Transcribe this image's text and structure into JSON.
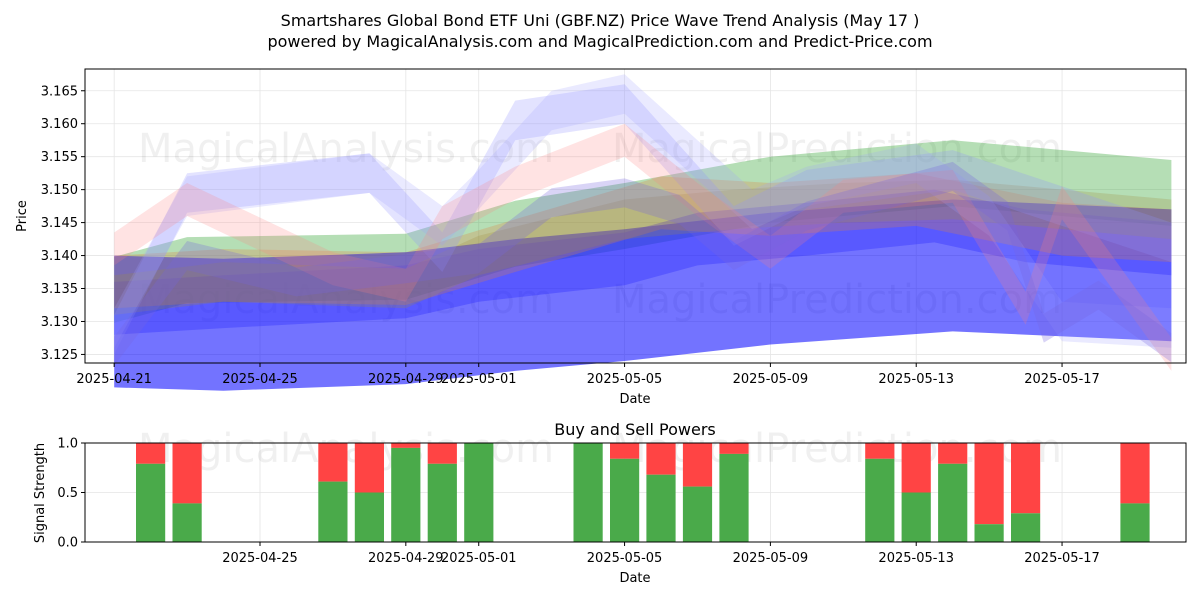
{
  "chart_data": [
    {
      "type": "area",
      "title": "Smartshares Global Bond ETF Uni (GBF.NZ) Price Wave Trend Analysis (May 17 )",
      "subtitle": "powered by MagicalAnalysis.com and MagicalPrediction.com and Predict-Price.com",
      "xlabel": "Date",
      "ylabel": "Price",
      "grid": true,
      "x_range_days": [
        -0.8,
        29.4
      ],
      "x_ticks": [
        {
          "day": 0,
          "label": "2025-04-21"
        },
        {
          "day": 4,
          "label": "2025-04-25"
        },
        {
          "day": 8,
          "label": "2025-04-29"
        },
        {
          "day": 10,
          "label": "2025-05-01"
        },
        {
          "day": 14,
          "label": "2025-05-05"
        },
        {
          "day": 18,
          "label": "2025-05-09"
        },
        {
          "day": 22,
          "label": "2025-05-13"
        },
        {
          "day": 26,
          "label": "2025-05-17"
        }
      ],
      "ylim": [
        3.1237,
        3.1683
      ],
      "y_ticks": [
        "3.125",
        "3.130",
        "3.135",
        "3.140",
        "3.145",
        "3.150",
        "3.155",
        "3.160",
        "3.165"
      ],
      "watermarks": [
        "MagicalAnalysis.com",
        "MagicalPrediction.com"
      ],
      "series": [
        {
          "name": "wave-green",
          "color": "#2ca02c",
          "opacity": 0.35,
          "x": [
            0,
            2,
            8,
            11,
            14,
            18,
            23,
            29
          ],
          "y": [
            3.1348,
            3.1378,
            3.1383,
            3.1433,
            3.146,
            3.15,
            3.1525,
            3.1495
          ],
          "band": 0.005
        },
        {
          "name": "wave-blue-main",
          "color": "#0000ff",
          "opacity": 0.55,
          "x": [
            0,
            3,
            8,
            11,
            14,
            18,
            23,
            29
          ],
          "y": [
            3.13,
            3.1295,
            3.1305,
            3.1325,
            3.134,
            3.1365,
            3.1385,
            3.137
          ],
          "band": 0.01
        },
        {
          "name": "wave-blue-2",
          "color": "#3333ff",
          "opacity": 0.4,
          "x": [
            0,
            3,
            8,
            10,
            14,
            16,
            19,
            22.5,
            25,
            29
          ],
          "y": [
            3.132,
            3.133,
            3.1345,
            3.137,
            3.1395,
            3.1425,
            3.144,
            3.146,
            3.143,
            3.141
          ],
          "band": 0.004
        },
        {
          "name": "wave-orange",
          "color": "#e08040",
          "opacity": 0.28,
          "x": [
            0,
            3,
            8,
            11,
            15,
            18,
            22,
            26,
            29
          ],
          "y": [
            3.136,
            3.137,
            3.1365,
            3.1415,
            3.148,
            3.147,
            3.1485,
            3.144,
            3.143
          ],
          "band": 0.004
        },
        {
          "name": "wave-olive",
          "color": "#a08a40",
          "opacity": 0.25,
          "x": [
            0,
            3,
            8,
            10,
            14,
            17,
            20,
            23,
            29
          ],
          "y": [
            3.134,
            3.136,
            3.135,
            3.14,
            3.1455,
            3.147,
            3.148,
            3.1485,
            3.1455
          ],
          "band": 0.003
        },
        {
          "name": "wave-lavender-high",
          "color": "#9090ff",
          "opacity": 0.25,
          "x": [
            0,
            2,
            7,
            9,
            11,
            14,
            17,
            19,
            23,
            29
          ],
          "y": [
            3.128,
            3.1495,
            3.1525,
            3.1405,
            3.1605,
            3.163,
            3.1445,
            3.15,
            3.153,
            3.142
          ],
          "band": 0.003
        },
        {
          "name": "wave-lavender-upper",
          "color": "#a0a0ff",
          "opacity": 0.22,
          "x": [
            0,
            2,
            7,
            9,
            10,
            12,
            14,
            16,
            17.5,
            19,
            22,
            24,
            26,
            29
          ],
          "y": [
            3.129,
            3.149,
            3.1525,
            3.1445,
            3.15,
            3.162,
            3.1645,
            3.1545,
            3.147,
            3.1505,
            3.154,
            3.146,
            3.13,
            3.129
          ],
          "band": 0.003
        },
        {
          "name": "wave-pink",
          "color": "#ff8080",
          "opacity": 0.22,
          "x": [
            0,
            2,
            6,
            8,
            9,
            11,
            14,
            16,
            18,
            20,
            23,
            25,
            26,
            29
          ],
          "y": [
            3.141,
            3.1485,
            3.138,
            3.1355,
            3.145,
            3.151,
            3.1575,
            3.1485,
            3.1405,
            3.149,
            3.1505,
            3.132,
            3.148,
            3.125
          ],
          "band": 0.0025
        },
        {
          "name": "wave-purple",
          "color": "#7766dd",
          "opacity": 0.28,
          "x": [
            0,
            2,
            5,
            8,
            10,
            12,
            14,
            15.5,
            17,
            19,
            23,
            24.5,
            25.5,
            27,
            29
          ],
          "y": [
            3.1255,
            3.14,
            3.136,
            3.138,
            3.1395,
            3.148,
            3.1495,
            3.147,
            3.14,
            3.146,
            3.152,
            3.146,
            3.129,
            3.134,
            3.126
          ],
          "band": 0.0022
        }
      ]
    },
    {
      "type": "bar",
      "title": "Buy and Sell Powers",
      "xlabel": "Date",
      "ylabel": "Signal Strength",
      "ylim": [
        0,
        1
      ],
      "y_ticks": [
        "0.0",
        "0.5",
        "1.0"
      ],
      "x_range_days": [
        -0.8,
        29.4
      ],
      "x_ticks": [
        {
          "day": 4,
          "label": "2025-04-25"
        },
        {
          "day": 8,
          "label": "2025-04-29"
        },
        {
          "day": 10,
          "label": "2025-05-01"
        },
        {
          "day": 14,
          "label": "2025-05-05"
        },
        {
          "day": 18,
          "label": "2025-05-09"
        },
        {
          "day": 22,
          "label": "2025-05-13"
        },
        {
          "day": 26,
          "label": "2025-05-17"
        }
      ],
      "buy_color": "#4aaa4a",
      "sell_color": "#ff4444",
      "bars": [
        {
          "day": 1,
          "buy": 0.79
        },
        {
          "day": 2,
          "buy": 0.39
        },
        {
          "day": 6,
          "buy": 0.61
        },
        {
          "day": 7,
          "buy": 0.5
        },
        {
          "day": 8,
          "buy": 0.95
        },
        {
          "day": 9,
          "buy": 0.79
        },
        {
          "day": 10,
          "buy": 1.0
        },
        {
          "day": 13,
          "buy": 1.0
        },
        {
          "day": 14,
          "buy": 0.84
        },
        {
          "day": 15,
          "buy": 0.68
        },
        {
          "day": 16,
          "buy": 0.56
        },
        {
          "day": 17,
          "buy": 0.89
        },
        {
          "day": 21,
          "buy": 0.84
        },
        {
          "day": 22,
          "buy": 0.5
        },
        {
          "day": 23,
          "buy": 0.79
        },
        {
          "day": 24,
          "buy": 0.18
        },
        {
          "day": 25,
          "buy": 0.29
        },
        {
          "day": 28,
          "buy": 0.39
        }
      ]
    }
  ]
}
